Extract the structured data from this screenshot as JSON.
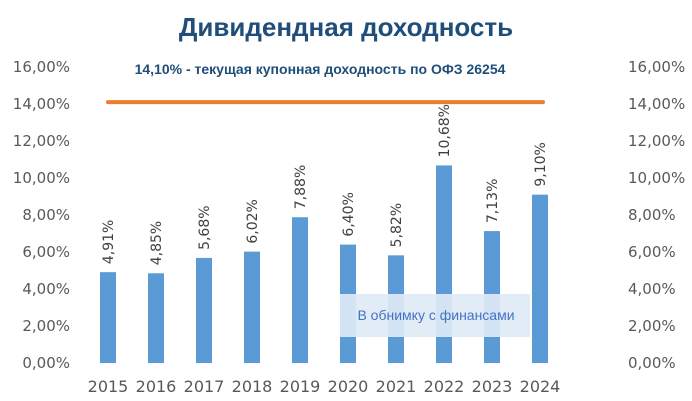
{
  "chart_data": {
    "type": "bar",
    "title": "Дивидендная доходность",
    "categories": [
      "2015",
      "2016",
      "2017",
      "2018",
      "2019",
      "2020",
      "2021",
      "2022",
      "2023",
      "2024"
    ],
    "values": [
      4.91,
      4.85,
      5.68,
      6.02,
      7.88,
      6.4,
      5.82,
      10.68,
      7.13,
      9.1
    ],
    "value_labels": [
      "4,91%",
      "4,85%",
      "5,68%",
      "6,02%",
      "7,88%",
      "6,40%",
      "5,82%",
      "10,68%",
      "7,13%",
      "9,10%"
    ],
    "y_ticks": [
      "0,00%",
      "2,00%",
      "4,00%",
      "6,00%",
      "8,00%",
      "10,00%",
      "12,00%",
      "14,00%",
      "16,00%"
    ],
    "ylim": [
      0,
      16
    ],
    "bar_color": "#5b9bd5",
    "reference_line": {
      "value": 14.1,
      "label": "14,10% - текущая купонная доходность по ОФЗ 26254",
      "color": "#ed7d31"
    },
    "grid": false,
    "secondary_axis": true
  },
  "watermark": {
    "text": "В обнимку с финансами"
  }
}
